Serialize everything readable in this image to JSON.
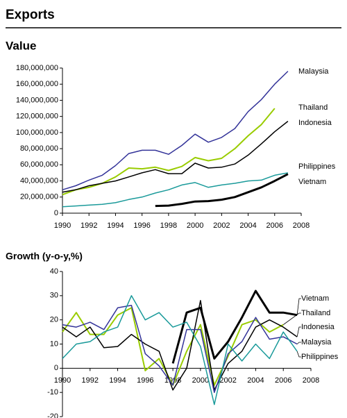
{
  "header": {
    "title": "Exports"
  },
  "chart_data": [
    {
      "type": "line",
      "title": "Value",
      "x": [
        1990,
        1991,
        1992,
        1993,
        1994,
        1995,
        1996,
        1997,
        1998,
        1999,
        2000,
        2001,
        2002,
        2003,
        2004,
        2005,
        2006,
        2007
      ],
      "xlim": [
        1990,
        2008
      ],
      "xticks": [
        1990,
        1992,
        1994,
        1996,
        1998,
        2000,
        2002,
        2004,
        2006,
        2008
      ],
      "ylim": [
        0,
        180000000
      ],
      "yticks": [
        0,
        {
          "value": 20000000,
          "label": "20,000,000"
        },
        {
          "value": 40000000,
          "label": "40,000,000"
        },
        {
          "value": 60000000,
          "label": "60,000,000"
        },
        {
          "value": 80000000,
          "label": "80,000,000"
        },
        {
          "value": 100000000,
          "label": "100,000,000"
        },
        {
          "value": 120000000,
          "label": "120,000,000"
        },
        {
          "value": 140000000,
          "label": "140,000,000"
        },
        {
          "value": 160000000,
          "label": "160,000,000"
        },
        {
          "value": 180000000,
          "label": "180,000,000"
        }
      ],
      "series": [
        {
          "name": "Malaysia",
          "color": "#333399",
          "line_width": 1.5,
          "values": [
            29000000,
            34000000,
            41000000,
            47000000,
            59000000,
            74000000,
            78000000,
            78000000,
            73000000,
            84000000,
            98000000,
            88000000,
            94000000,
            105000000,
            126000000,
            141000000,
            160000000,
            176000000
          ]
        },
        {
          "name": "Thailand",
          "color": "#99cc00",
          "line_width": 2,
          "values": [
            23000000,
            29000000,
            32000000,
            37000000,
            45000000,
            56000000,
            55000000,
            57000000,
            53000000,
            58000000,
            69000000,
            65000000,
            68000000,
            80000000,
            96000000,
            110000000,
            130000000,
            null
          ]
        },
        {
          "name": "Indonesia",
          "color": "#000000",
          "line_width": 1.5,
          "values": [
            26000000,
            29000000,
            34000000,
            37000000,
            40000000,
            45000000,
            50000000,
            54000000,
            49000000,
            49000000,
            62000000,
            56000000,
            57000000,
            61000000,
            72000000,
            86000000,
            101000000,
            114000000
          ]
        },
        {
          "name": "Philippines",
          "color": "#1a9a9a",
          "line_width": 1.5,
          "values": [
            8000000,
            9000000,
            10000000,
            11000000,
            13000000,
            17000000,
            20000000,
            25000000,
            29000000,
            35000000,
            38000000,
            32000000,
            35000000,
            37000000,
            40000000,
            41000000,
            47000000,
            50000000
          ]
        },
        {
          "name": "Vietnam",
          "color": "#000000",
          "line_width": 3,
          "values": [
            null,
            null,
            null,
            null,
            null,
            null,
            null,
            9000000,
            9400000,
            11500000,
            14500000,
            15000000,
            16700000,
            20000000,
            26000000,
            32000000,
            40000000,
            48500000
          ]
        }
      ]
    },
    {
      "type": "line",
      "title": "Growth (y-o-y,%)",
      "x": [
        1990,
        1991,
        1992,
        1993,
        1994,
        1995,
        1996,
        1997,
        1998,
        1999,
        2000,
        2001,
        2002,
        2003,
        2004,
        2005,
        2006,
        2007
      ],
      "xlim": [
        1990,
        2008
      ],
      "xticks": [
        1990,
        1992,
        1994,
        1996,
        1998,
        2000,
        2002,
        2004,
        2006,
        2008
      ],
      "ylim": [
        -20,
        40
      ],
      "yticks": [
        -20,
        -10,
        0,
        10,
        20,
        30,
        40
      ],
      "series": [
        {
          "name": "Vietnam",
          "color": "#000000",
          "line_width": 3,
          "values": [
            null,
            null,
            null,
            null,
            null,
            null,
            null,
            null,
            2,
            23,
            25,
            4,
            11,
            21,
            32,
            23,
            23,
            22
          ]
        },
        {
          "name": "Thailand",
          "color": "#99cc00",
          "line_width": 2,
          "values": [
            15,
            23,
            14,
            14,
            22,
            25,
            -1,
            4,
            -7,
            7,
            18,
            -7,
            5,
            18,
            20,
            15,
            18,
            null
          ]
        },
        {
          "name": "Indonesia",
          "color": "#000000",
          "line_width": 1.5,
          "values": [
            17,
            13,
            17,
            8.5,
            9,
            14,
            10,
            7,
            -9,
            0,
            28,
            -9,
            2,
            7,
            17,
            20,
            17,
            13
          ]
        },
        {
          "name": "Malaysia",
          "color": "#333399",
          "line_width": 1.5,
          "values": [
            18,
            17,
            19,
            16,
            25,
            26,
            6,
            1,
            -7,
            16,
            16,
            -10,
            6,
            11,
            21,
            12,
            13,
            10
          ]
        },
        {
          "name": "Philippines",
          "color": "#1a9a9a",
          "line_width": 1.5,
          "values": [
            4,
            10,
            11,
            15,
            17,
            30,
            20,
            23,
            17,
            19,
            9,
            -15,
            10,
            3,
            10,
            4,
            15,
            7
          ]
        }
      ]
    }
  ]
}
